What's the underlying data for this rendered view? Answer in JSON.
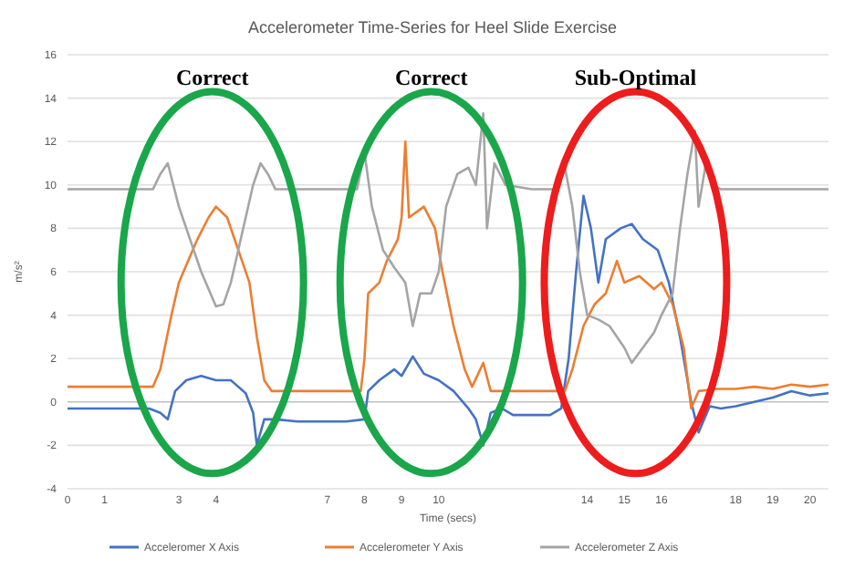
{
  "chart_data": {
    "type": "line",
    "title": "Accelerometer Time-Series for Heel Slide Exercise",
    "xlabel": "Time (secs)",
    "ylabel": "m/s²",
    "xlim": [
      0,
      20.5
    ],
    "xticks": [
      0,
      1,
      3,
      4,
      7,
      8,
      9,
      10,
      14,
      15,
      16,
      18,
      19,
      20
    ],
    "ylim": [
      -4,
      16
    ],
    "yticks": [
      -4,
      -2,
      0,
      2,
      4,
      6,
      8,
      10,
      12,
      14,
      16
    ],
    "grid": "y",
    "legend": "bottom",
    "marker": "none",
    "line_style": "solid",
    "annotations": [
      "Correct",
      "Correct",
      "Sub-Optimal"
    ],
    "series": [
      {
        "name": "Acceleromer X Axis",
        "color": "#4472c4",
        "x": [
          0,
          1,
          2,
          2.2,
          2.5,
          2.7,
          2.9,
          3.2,
          3.6,
          4,
          4.4,
          4.8,
          5,
          5.1,
          5.3,
          5.6,
          6.2,
          7,
          7.5,
          8,
          8.1,
          8.4,
          8.8,
          9,
          9.3,
          9.6,
          10,
          10.4,
          10.8,
          11,
          11.2,
          11.4,
          11.7,
          12,
          12.5,
          13,
          13.3,
          13.5,
          13.7,
          13.9,
          14.1,
          14.3,
          14.5,
          14.9,
          15.2,
          15.5,
          15.9,
          16.2,
          16.5,
          16.8,
          17,
          17.3,
          17.6,
          18,
          18.5,
          19,
          19.5,
          20,
          20.5
        ],
        "values": [
          -0.3,
          -0.3,
          -0.3,
          -0.3,
          -0.5,
          -0.8,
          0.5,
          1,
          1.2,
          1,
          1,
          0.4,
          -0.5,
          -2,
          -0.8,
          -0.8,
          -0.9,
          -0.9,
          -0.9,
          -0.8,
          0.5,
          1,
          1.5,
          1.2,
          2.1,
          1.3,
          1,
          0.5,
          -0.3,
          -0.8,
          -2,
          -0.5,
          -0.3,
          -0.6,
          -0.6,
          -0.6,
          -0.3,
          2,
          6,
          9.5,
          8,
          5.5,
          7.5,
          8,
          8.2,
          7.5,
          7,
          5.5,
          3,
          0,
          -1.4,
          -0.2,
          -0.3,
          -0.2,
          0,
          0.2,
          0.5,
          0.3,
          0.4
        ]
      },
      {
        "name": "Accelerometer Y Axis",
        "color": "#ed7d31",
        "x": [
          0,
          1,
          2,
          2.3,
          2.5,
          2.8,
          3,
          3.2,
          3.5,
          3.8,
          4,
          4.3,
          4.6,
          4.9,
          5.1,
          5.3,
          5.5,
          6.5,
          7.5,
          7.9,
          8,
          8.1,
          8.4,
          8.6,
          8.9,
          9,
          9.1,
          9.2,
          9.6,
          9.9,
          10.1,
          10.4,
          10.7,
          10.9,
          11.2,
          11.4,
          12.5,
          13.4,
          13.6,
          13.9,
          14.2,
          14.5,
          14.8,
          15,
          15.4,
          15.8,
          16,
          16.3,
          16.6,
          16.8,
          17,
          17.5,
          18,
          18.5,
          19,
          19.5,
          20,
          20.5
        ],
        "values": [
          0.7,
          0.7,
          0.7,
          0.7,
          1.5,
          4,
          5.5,
          6.3,
          7.5,
          8.5,
          9,
          8.5,
          7,
          5.5,
          3,
          1,
          0.5,
          0.5,
          0.5,
          0.5,
          2,
          5,
          5.5,
          6.5,
          7.5,
          8.5,
          12,
          8.5,
          9,
          8,
          6,
          3.5,
          1.5,
          0.7,
          1.8,
          0.5,
          0.5,
          0.5,
          1.5,
          3.5,
          4.5,
          5,
          6.5,
          5.5,
          5.8,
          5.2,
          5.5,
          4.5,
          2.5,
          -0.3,
          0.5,
          0.6,
          0.6,
          0.7,
          0.6,
          0.8,
          0.7,
          0.8
        ]
      },
      {
        "name": "Accelerometer Z Axis",
        "color": "#a5a5a5",
        "x": [
          0,
          1,
          2,
          2.3,
          2.5,
          2.7,
          3,
          3.3,
          3.6,
          3.8,
          4,
          4.2,
          4.4,
          4.6,
          4.8,
          5,
          5.2,
          5.4,
          5.6,
          6.5,
          7.8,
          8,
          8.2,
          8.5,
          8.8,
          9.1,
          9.3,
          9.5,
          9.8,
          10,
          10.2,
          10.5,
          10.8,
          11,
          11.2,
          11.3,
          11.5,
          11.8,
          12.5,
          13.2,
          13.4,
          13.6,
          13.8,
          14,
          14.3,
          14.6,
          15,
          15.2,
          15.5,
          15.8,
          16,
          16.3,
          16.5,
          16.7,
          16.9,
          17,
          17.2,
          17.4,
          17.6,
          18.5,
          19.5,
          20.5
        ],
        "values": [
          9.8,
          9.8,
          9.8,
          9.8,
          10.5,
          11,
          9,
          7.5,
          6,
          5.2,
          4.4,
          4.5,
          5.5,
          7,
          8.5,
          10,
          11,
          10.5,
          9.8,
          9.8,
          9.8,
          11.5,
          9,
          7,
          6.2,
          5.5,
          3.5,
          5,
          5,
          6,
          9,
          10.5,
          10.8,
          10,
          13.3,
          8,
          11,
          10,
          9.8,
          9.8,
          10.8,
          9,
          6,
          4,
          3.8,
          3.5,
          2.5,
          1.8,
          2.5,
          3.2,
          4,
          5,
          8,
          10.5,
          12.5,
          9,
          11,
          10,
          9.8,
          9.8,
          9.8,
          9.8
        ]
      }
    ]
  }
}
